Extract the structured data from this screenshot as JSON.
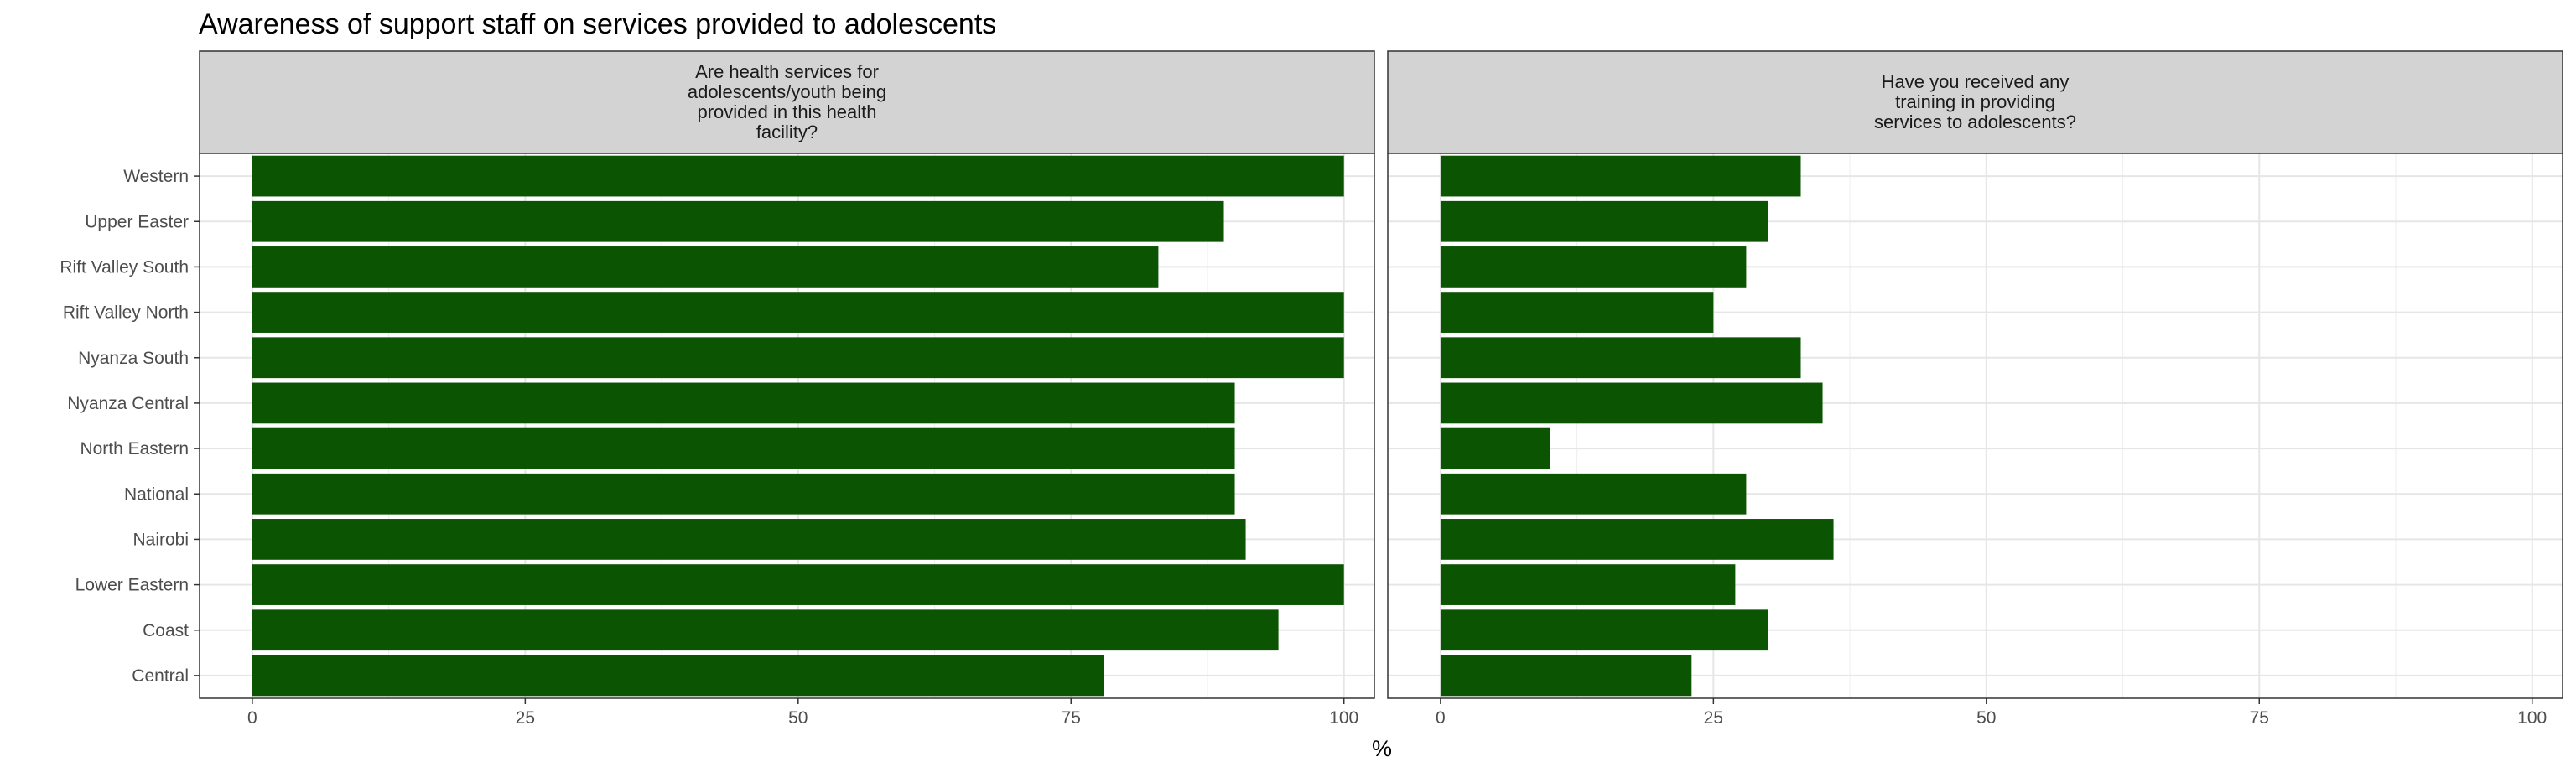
{
  "chart_data": {
    "type": "bar",
    "orientation": "horizontal",
    "title": "Awareness of support staff on services provided to adolescents",
    "xlabel": "%",
    "ylabel": "",
    "xlim": [
      0,
      100
    ],
    "x_ticks": [
      0,
      25,
      50,
      75,
      100
    ],
    "grid": true,
    "bar_color": "#0b5402",
    "categories": [
      "Western",
      "Upper Easter",
      "Rift Valley South",
      "Rift Valley North",
      "Nyanza South",
      "Nyanza Central",
      "North Eastern",
      "National",
      "Nairobi",
      "Lower Eastern",
      "Coast",
      "Central"
    ],
    "panels": [
      {
        "strip_lines": [
          "Are health services for",
          "adolescents/youth being",
          "provided in this health",
          "facility?"
        ],
        "values": [
          100,
          89,
          83,
          100,
          100,
          90,
          90,
          90,
          91,
          100,
          94,
          78
        ]
      },
      {
        "strip_lines": [
          "Have you received any",
          "training in providing",
          "services to adolescents?"
        ],
        "values": [
          33,
          30,
          28,
          25,
          33,
          35,
          10,
          28,
          36,
          27,
          30,
          23
        ]
      }
    ]
  }
}
